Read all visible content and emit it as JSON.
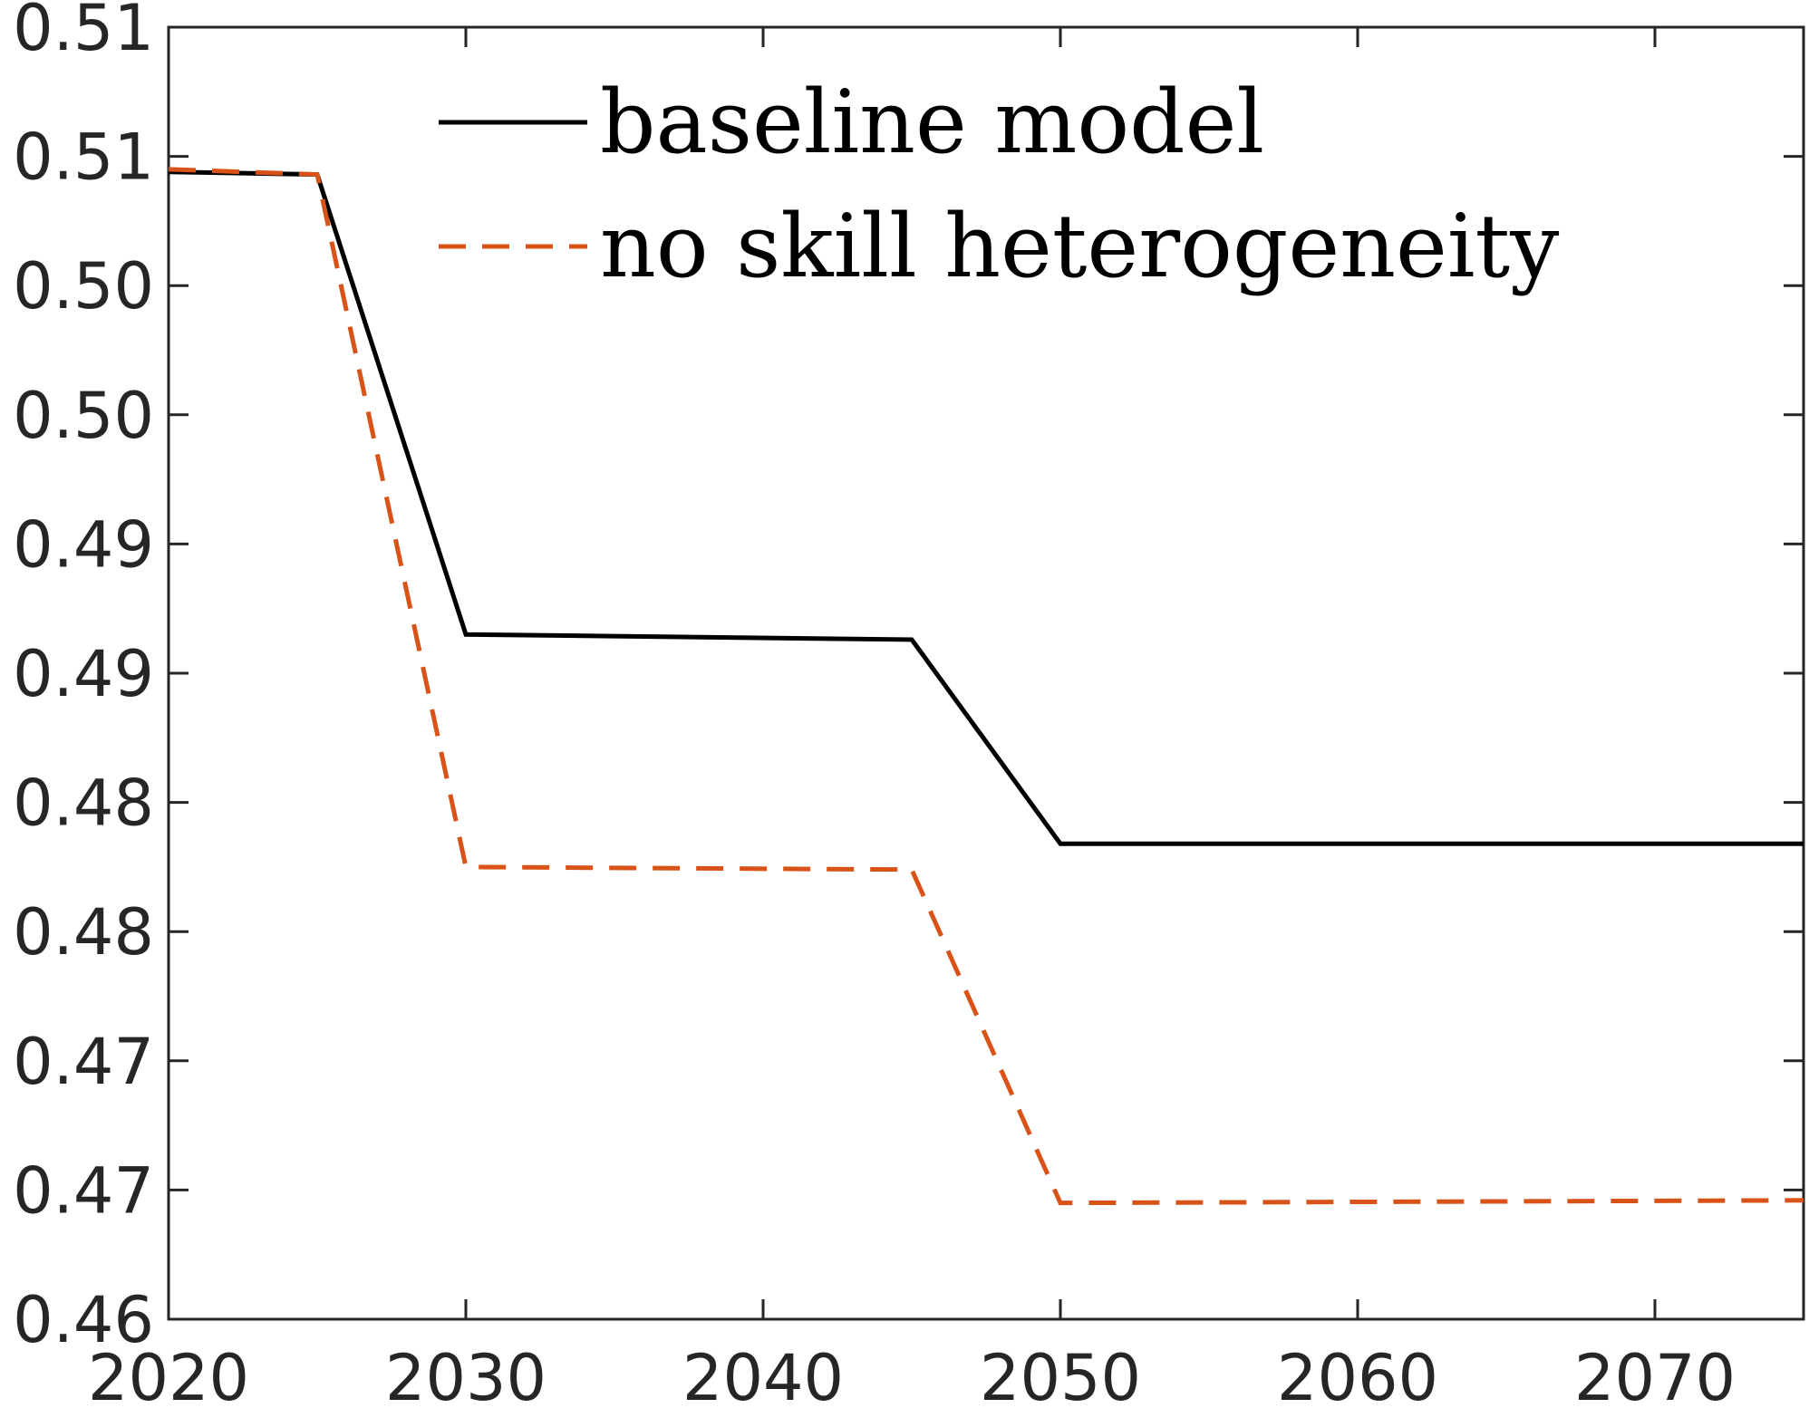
{
  "chart_data": {
    "type": "line",
    "title": "",
    "xlabel": "",
    "ylabel": "",
    "xlim": [
      2020,
      2075
    ],
    "ylim": [
      0.46,
      0.51
    ],
    "xticks": [
      2020,
      2030,
      2040,
      2050,
      2060,
      2070
    ],
    "xtick_labels": [
      "2020",
      "2030",
      "2040",
      "2050",
      "2060",
      "2070"
    ],
    "yticks": [
      0.46,
      0.465,
      0.47,
      0.475,
      0.48,
      0.485,
      0.49,
      0.495,
      0.5,
      0.505,
      0.51
    ],
    "ytick_labels": [
      "0.46",
      "0.47",
      "0.47",
      "0.48",
      "0.48",
      "0.49",
      "0.49",
      "0.50",
      "0.50",
      "0.51"
    ],
    "ytick_values": [
      0.46,
      0.465,
      0.47,
      0.475,
      0.48,
      0.485,
      0.49,
      0.495,
      0.5,
      0.505
    ],
    "top_label": "0.51",
    "grid": false,
    "legend_position": "top",
    "series": [
      {
        "name": "baseline model",
        "color": "#000000",
        "style": "solid",
        "x": [
          2020,
          2025,
          2030,
          2045,
          2050,
          2075
        ],
        "y": [
          0.5044,
          0.5043,
          0.4865,
          0.4863,
          0.4784,
          0.4784
        ]
      },
      {
        "name": "no skill heterogeneity",
        "color": "#d95319",
        "style": "dashed",
        "x": [
          2020,
          2025,
          2030,
          2045,
          2050,
          2075
        ],
        "y": [
          0.5045,
          0.5043,
          0.4775,
          0.4774,
          0.4645,
          0.4646
        ]
      }
    ]
  }
}
